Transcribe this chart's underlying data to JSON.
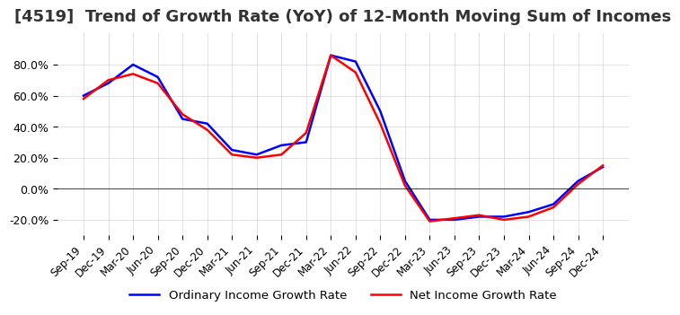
{
  "title": "[4519]  Trend of Growth Rate (YoY) of 12-Month Moving Sum of Incomes",
  "title_fontsize": 13,
  "xlabel": "",
  "ylabel": "",
  "ylim": [
    -30,
    100
  ],
  "yticks": [
    -20.0,
    0.0,
    20.0,
    40.0,
    60.0,
    80.0
  ],
  "background_color": "#ffffff",
  "grid_color": "#cccccc",
  "ordinary_color": "#0000ff",
  "net_color": "#ff0000",
  "legend_labels": [
    "Ordinary Income Growth Rate",
    "Net Income Growth Rate"
  ],
  "dates": [
    "Sep-19",
    "Dec-19",
    "Mar-20",
    "Jun-20",
    "Sep-20",
    "Dec-20",
    "Mar-21",
    "Jun-21",
    "Sep-21",
    "Dec-21",
    "Mar-22",
    "Jun-22",
    "Sep-22",
    "Dec-22",
    "Mar-23",
    "Jun-23",
    "Sep-23",
    "Dec-23",
    "Mar-24",
    "Jun-24",
    "Sep-24",
    "Dec-24"
  ],
  "ordinary_income_growth": [
    60.0,
    68.0,
    80.0,
    72.0,
    45.0,
    42.0,
    25.0,
    22.0,
    28.0,
    30.0,
    86.0,
    82.0,
    50.0,
    5.0,
    -20.0,
    -20.0,
    -18.0,
    -18.0,
    -15.0,
    -10.0,
    5.0,
    14.0
  ],
  "net_income_growth": [
    58.0,
    70.0,
    74.0,
    68.0,
    48.0,
    38.0,
    22.0,
    20.0,
    22.0,
    36.0,
    86.0,
    75.0,
    42.0,
    2.0,
    -21.0,
    -19.0,
    -17.0,
    -20.0,
    -18.0,
    -12.0,
    3.0,
    15.0
  ]
}
